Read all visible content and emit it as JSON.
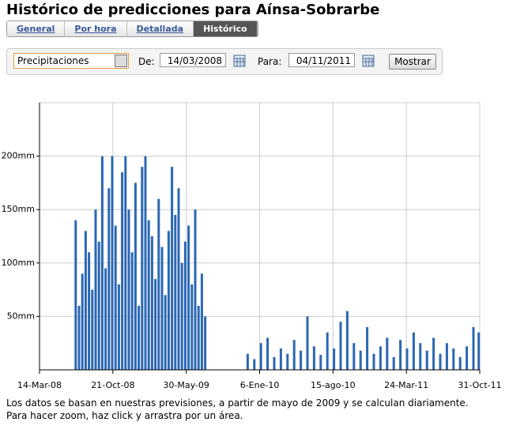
{
  "header": {
    "title": "Histórico de predicciones para Aínsa-Sobrarbe"
  },
  "tabs": [
    "General",
    "Por hora",
    "Detallada",
    "Histórico"
  ],
  "form": {
    "select": "Precipitaciones",
    "from_label": "De:",
    "from_value": "14/03/2008",
    "to_label": "Para:",
    "to_value": "04/11/2011",
    "button": "Mostrar"
  },
  "chart_data": {
    "type": "bar",
    "color": "#2b67b3",
    "grid": true,
    "x": [
      "2008-07-01",
      "2008-07-11",
      "2008-07-21",
      "2008-07-31",
      "2008-08-10",
      "2008-08-20",
      "2008-08-30",
      "2008-09-09",
      "2008-09-19",
      "2008-09-29",
      "2008-10-09",
      "2008-10-19",
      "2008-10-29",
      "2008-11-08",
      "2008-11-18",
      "2008-11-28",
      "2008-12-08",
      "2008-12-18",
      "2008-12-28",
      "2009-01-07",
      "2009-01-17",
      "2009-01-27",
      "2009-02-06",
      "2009-02-16",
      "2009-02-26",
      "2009-03-08",
      "2009-03-18",
      "2009-03-28",
      "2009-04-07",
      "2009-04-17",
      "2009-04-27",
      "2009-05-07",
      "2009-05-17",
      "2009-05-27",
      "2009-06-06",
      "2009-06-16",
      "2009-06-26",
      "2009-07-06",
      "2009-07-16",
      "2009-07-26",
      "2009-12-01",
      "2009-12-21",
      "2010-01-10",
      "2010-01-30",
      "2010-02-19",
      "2010-03-11",
      "2010-03-31",
      "2010-04-20",
      "2010-05-10",
      "2010-05-30",
      "2010-06-19",
      "2010-07-09",
      "2010-07-29",
      "2010-08-18",
      "2010-09-07",
      "2010-09-27",
      "2010-10-17",
      "2010-11-06",
      "2010-11-26",
      "2010-12-16",
      "2011-01-05",
      "2011-01-25",
      "2011-02-14",
      "2011-03-06",
      "2011-03-26",
      "2011-04-15",
      "2011-05-05",
      "2011-05-25",
      "2011-06-14",
      "2011-07-04",
      "2011-07-24",
      "2011-08-13",
      "2011-09-02",
      "2011-09-22",
      "2011-10-12",
      "2011-10-28"
    ],
    "values": [
      140,
      60,
      90,
      130,
      110,
      75,
      150,
      120,
      200,
      95,
      170,
      200,
      135,
      80,
      185,
      200,
      150,
      110,
      175,
      60,
      190,
      200,
      140,
      125,
      85,
      160,
      115,
      70,
      130,
      190,
      145,
      170,
      100,
      120,
      135,
      80,
      150,
      60,
      90,
      50,
      15,
      10,
      25,
      30,
      12,
      20,
      15,
      28,
      18,
      50,
      22,
      14,
      35,
      20,
      45,
      55,
      25,
      18,
      40,
      15,
      22,
      30,
      12,
      28,
      20,
      35,
      25,
      18,
      30,
      15,
      25,
      20,
      12,
      22,
      40,
      35
    ],
    "xlim": [
      "2008-03-14",
      "2011-10-31"
    ],
    "xticks": [
      {
        "value": "2008-03-14",
        "label": "14-Mar-08"
      },
      {
        "value": "2008-10-21",
        "label": "21-Oct-08"
      },
      {
        "value": "2009-05-30",
        "label": "30-May-09"
      },
      {
        "value": "2010-01-06",
        "label": "6-Ene-10"
      },
      {
        "value": "2010-08-15",
        "label": "15-ago-10"
      },
      {
        "value": "2011-03-24",
        "label": "24-Mar-11"
      },
      {
        "value": "2011-10-31",
        "label": "31-Oct-11"
      }
    ],
    "ylim": [
      0,
      250
    ],
    "yticks": [
      {
        "value": 50,
        "label": "50mm"
      },
      {
        "value": 100,
        "label": "100mm"
      },
      {
        "value": 150,
        "label": "150mm"
      },
      {
        "value": 200,
        "label": "200mm"
      }
    ]
  },
  "footer": [
    "Los datos se basan en nuestras previsiones, a partir de mayo de 2009 y se calculan diariamente.",
    "Para hacer zoom, haz click y arrastra por un área."
  ]
}
